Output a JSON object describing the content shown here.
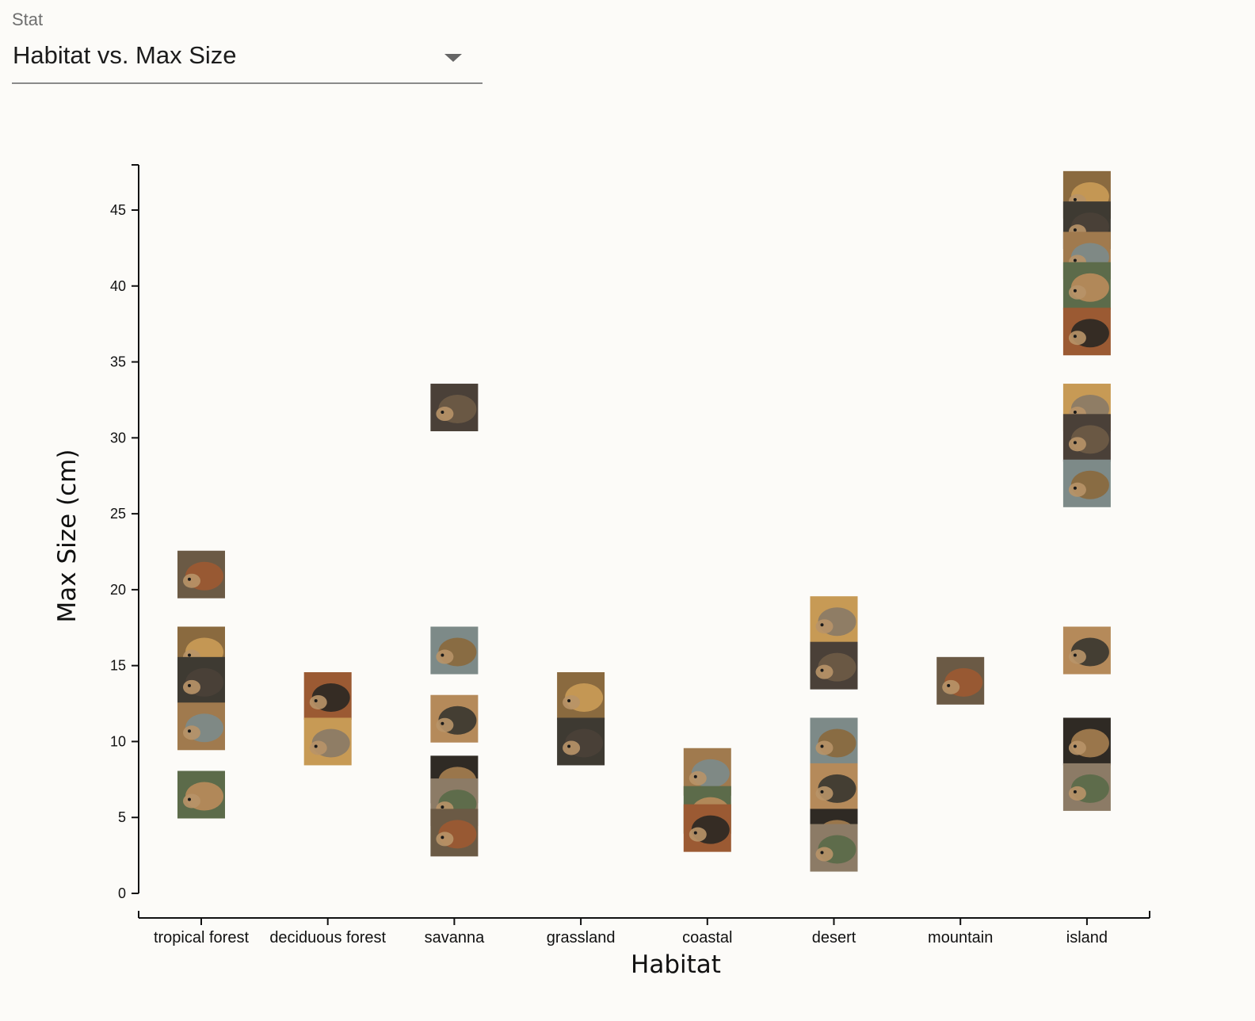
{
  "control": {
    "label": "Stat",
    "selected": "Habitat vs. Max Size"
  },
  "chart_data": {
    "type": "scatter",
    "title": "",
    "xlabel": "Habitat",
    "ylabel": "Max Size (cm)",
    "categories": [
      "tropical forest",
      "deciduous forest",
      "savanna",
      "grassland",
      "coastal",
      "desert",
      "mountain",
      "island"
    ],
    "ylim": [
      0,
      48
    ],
    "yticks": [
      0,
      5,
      10,
      15,
      20,
      25,
      30,
      35,
      40,
      45
    ],
    "marker": "tortoise photo thumbnail",
    "points": [
      {
        "x": "tropical forest",
        "y": 21
      },
      {
        "x": "tropical forest",
        "y": 16
      },
      {
        "x": "tropical forest",
        "y": 14
      },
      {
        "x": "tropical forest",
        "y": 11
      },
      {
        "x": "tropical forest",
        "y": 6.5
      },
      {
        "x": "deciduous forest",
        "y": 13
      },
      {
        "x": "deciduous forest",
        "y": 10
      },
      {
        "x": "savanna",
        "y": 32
      },
      {
        "x": "savanna",
        "y": 16
      },
      {
        "x": "savanna",
        "y": 11.5
      },
      {
        "x": "savanna",
        "y": 7.5
      },
      {
        "x": "savanna",
        "y": 6
      },
      {
        "x": "savanna",
        "y": 4
      },
      {
        "x": "grassland",
        "y": 13
      },
      {
        "x": "grassland",
        "y": 10
      },
      {
        "x": "coastal",
        "y": 8
      },
      {
        "x": "coastal",
        "y": 5.5
      },
      {
        "x": "coastal",
        "y": 4.3
      },
      {
        "x": "desert",
        "y": 18
      },
      {
        "x": "desert",
        "y": 15
      },
      {
        "x": "desert",
        "y": 10
      },
      {
        "x": "desert",
        "y": 7
      },
      {
        "x": "desert",
        "y": 4
      },
      {
        "x": "desert",
        "y": 3
      },
      {
        "x": "mountain",
        "y": 14
      },
      {
        "x": "island",
        "y": 46
      },
      {
        "x": "island",
        "y": 44
      },
      {
        "x": "island",
        "y": 42
      },
      {
        "x": "island",
        "y": 40
      },
      {
        "x": "island",
        "y": 37
      },
      {
        "x": "island",
        "y": 32
      },
      {
        "x": "island",
        "y": 30
      },
      {
        "x": "island",
        "y": 27
      },
      {
        "x": "island",
        "y": 16
      },
      {
        "x": "island",
        "y": 10
      },
      {
        "x": "island",
        "y": 7
      }
    ]
  },
  "palette": [
    "#6b5a45",
    "#8a6a3f",
    "#3e3a32",
    "#a07a4e",
    "#5c6b4a",
    "#9b5a33",
    "#c79a55",
    "#4a4038",
    "#7d8a88",
    "#b58a5a",
    "#2f2a24",
    "#8c7b66"
  ]
}
